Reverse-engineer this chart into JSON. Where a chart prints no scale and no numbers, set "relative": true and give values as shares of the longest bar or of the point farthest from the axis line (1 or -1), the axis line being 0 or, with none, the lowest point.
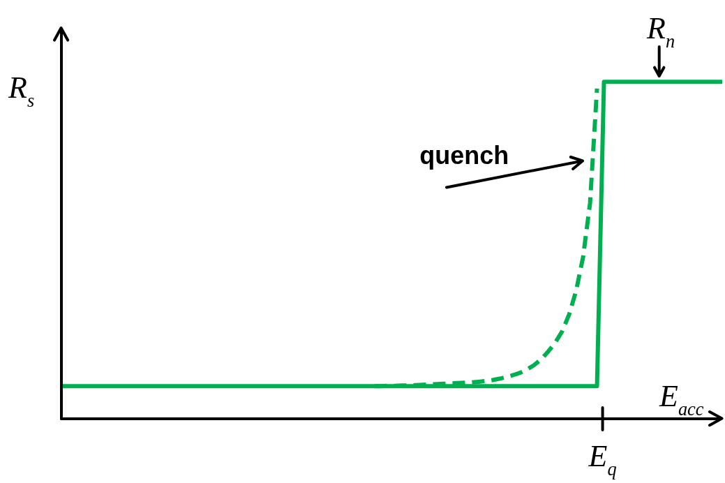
{
  "chart_data": {
    "type": "line",
    "relative": true,
    "xlabel": "E$_{acc}$",
    "ylabel": "R$_{s}$",
    "categories": [
      null,
      null,
      null,
      null,
      null,
      null,
      null,
      null,
      null,
      null,
      null,
      null,
      null,
      null,
      null,
      null,
      null,
      null,
      null,
      null,
      null,
      null,
      null,
      null,
      null,
      null,
      null,
      null,
      null,
      null,
      null,
      null,
      null,
      null,
      null,
      null,
      null,
      null,
      null,
      null,
      null,
      null,
      null,
      null,
      null,
      null,
      null,
      null,
      null,
      null,
      null,
      null,
      null,
      null,
      null,
      null,
      null,
      null,
      null,
      null,
      null,
      null,
      null,
      null,
      null,
      null,
      null,
      null,
      null,
      null,
      null,
      null,
      null,
      null,
      null,
      null,
      null,
      null,
      null,
      null,
      null,
      null,
      null,
      null,
      null,
      null,
      null,
      null,
      null,
      null,
      null,
      null,
      null,
      null,
      null,
      null
    ],
    "series": [
      {
        "color": "#00b050",
        "line_style": "solid",
        "values": [
          0.097,
          0.097,
          0.097,
          0.097,
          0.097,
          0.097,
          0.097,
          0.097,
          0.097,
          0.097,
          0.097,
          0.097,
          0.097,
          0.097,
          0.097,
          0.097,
          0.097,
          0.097,
          0.097,
          0.097,
          0.097,
          0.097,
          0.097,
          0.097,
          0.097,
          0.097,
          0.097,
          0.097,
          0.097,
          0.097,
          0.097,
          0.097,
          0.097,
          0.097,
          0.097,
          0.097,
          0.097,
          0.097,
          0.097,
          0.097,
          0.097,
          0.097,
          0.097,
          0.097,
          0.097,
          0.097,
          0.097,
          0.097,
          0.097,
          0.097,
          0.097,
          0.097,
          0.097,
          0.097,
          0.097,
          0.097,
          0.097,
          0.097,
          0.097,
          0.097,
          0.097,
          0.097,
          0.097,
          0.097,
          0.097,
          0.097,
          0.097,
          0.097,
          0.097,
          0.097,
          0.097,
          0.097,
          0.097,
          0.097,
          0.097,
          0.097,
          0.097,
          0.097,
          1,
          1,
          1,
          1,
          1,
          1,
          1,
          1,
          1,
          1,
          1,
          1,
          1,
          1,
          1,
          1,
          1,
          1
        ]
      },
      {
        "color": "#00b050",
        "line_style": "dashed",
        "values": [
          null,
          null,
          null,
          null,
          null,
          null,
          null,
          null,
          null,
          null,
          null,
          null,
          null,
          null,
          null,
          null,
          null,
          null,
          null,
          null,
          null,
          null,
          null,
          null,
          null,
          null,
          null,
          null,
          null,
          null,
          null,
          null,
          null,
          null,
          null,
          null,
          null,
          null,
          null,
          null,
          null,
          null,
          null,
          null,
          null,
          0.097,
          0.097,
          0.098,
          0.098,
          0.099,
          0.099,
          0.1,
          0.101,
          0.102,
          0.103,
          0.104,
          0.105,
          0.106,
          0.107,
          0.108,
          0.11,
          0.112,
          0.115,
          0.119,
          0.124,
          0.13,
          0.137,
          0.147,
          0.16,
          0.177,
          0.2,
          0.226,
          0.26,
          0.31,
          0.38,
          0.48,
          0.64,
          0.98,
          null,
          null,
          null,
          null,
          null,
          null,
          null,
          null,
          null,
          null,
          null,
          null,
          null,
          null,
          null,
          null,
          null,
          null
        ]
      }
    ],
    "annotations": [
      "quench",
      "R$_{n}$",
      "E$_{q}$"
    ],
    "legend": false,
    "marker": "none"
  }
}
